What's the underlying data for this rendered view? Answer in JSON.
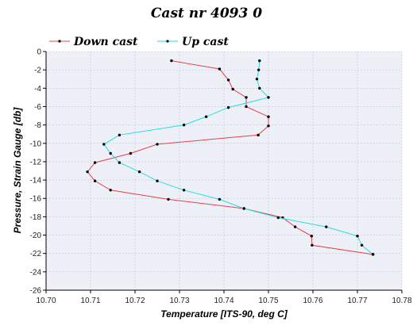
{
  "chart_data": {
    "type": "line",
    "title": "Cast nr 4093 0",
    "xlabel": "Temperature [ITS-90, deg C]",
    "ylabel": "Pressure, Strain Gauge [db]",
    "xlim": [
      10.7,
      10.78
    ],
    "ylim": [
      -26,
      0
    ],
    "x_ticks": [
      "10.70",
      "10.71",
      "10.72",
      "10.73",
      "10.74",
      "10.75",
      "10.76",
      "10.77",
      "10.78"
    ],
    "y_ticks": [
      "0",
      "-2",
      "-4",
      "-6",
      "-8",
      "-10",
      "-12",
      "-14",
      "-16",
      "-18",
      "-20",
      "-22",
      "-24",
      "-26"
    ],
    "grid": true,
    "legend_position": "top-left",
    "plot_background": "#eef0f8",
    "series": [
      {
        "name": "Down cast",
        "color": "#e8404a",
        "points": [
          [
            10.7282,
            -1.0
          ],
          [
            10.739,
            -1.9
          ],
          [
            10.741,
            -3.1
          ],
          [
            10.742,
            -4.1
          ],
          [
            10.745,
            -5.0
          ],
          [
            10.745,
            -6.0
          ],
          [
            10.75,
            -7.1
          ],
          [
            10.75,
            -8.1
          ],
          [
            10.7477,
            -9.1
          ],
          [
            10.725,
            -10.1
          ],
          [
            10.719,
            -11.1
          ],
          [
            10.711,
            -12.1
          ],
          [
            10.7093,
            -13.1
          ],
          [
            10.711,
            -14.1
          ],
          [
            10.7145,
            -15.1
          ],
          [
            10.7275,
            -16.1
          ],
          [
            10.7445,
            -17.1
          ],
          [
            10.7532,
            -18.1
          ],
          [
            10.756,
            -19.1
          ],
          [
            10.7597,
            -20.1
          ],
          [
            10.7598,
            -21.1
          ],
          [
            10.7735,
            -22.1
          ]
        ]
      },
      {
        "name": "Up cast",
        "color": "#22dede",
        "points": [
          [
            10.748,
            -1.0
          ],
          [
            10.7478,
            -2.0
          ],
          [
            10.7474,
            -3.0
          ],
          [
            10.748,
            -4.0
          ],
          [
            10.75,
            -5.0
          ],
          [
            10.741,
            -6.1
          ],
          [
            10.736,
            -7.1
          ],
          [
            10.731,
            -8.0
          ],
          [
            10.7165,
            -9.1
          ],
          [
            10.713,
            -10.1
          ],
          [
            10.7145,
            -11.1
          ],
          [
            10.7165,
            -12.1
          ],
          [
            10.721,
            -13.1
          ],
          [
            10.725,
            -14.1
          ],
          [
            10.731,
            -15.1
          ],
          [
            10.739,
            -16.1
          ],
          [
            10.7445,
            -17.1
          ],
          [
            10.7522,
            -18.1
          ],
          [
            10.763,
            -19.1
          ],
          [
            10.77,
            -20.1
          ],
          [
            10.771,
            -21.1
          ],
          [
            10.7735,
            -22.1
          ]
        ]
      }
    ]
  }
}
